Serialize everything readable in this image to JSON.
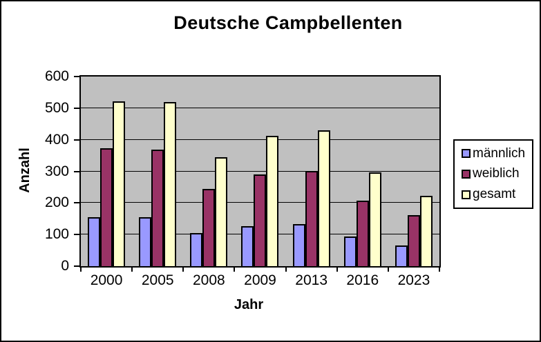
{
  "chart_data": {
    "type": "bar",
    "title": "Deutsche Campbellenten",
    "xlabel": "Jahr",
    "ylabel": "Anzahl",
    "categories": [
      "2000",
      "2005",
      "2008",
      "2009",
      "2013",
      "2016",
      "2023"
    ],
    "series": [
      {
        "name": "männlich",
        "color": "#9999ff",
        "values": [
          150,
          150,
          101,
          123,
          128,
          89,
          62
        ]
      },
      {
        "name": "weiblich",
        "color": "#993366",
        "values": [
          368,
          364,
          240,
          286,
          297,
          203,
          156
        ]
      },
      {
        "name": "gesamt",
        "color": "#ffffcc",
        "values": [
          518,
          514,
          341,
          409,
          425,
          292,
          218
        ]
      }
    ],
    "ylim": [
      0,
      600
    ],
    "yticks": [
      0,
      100,
      200,
      300,
      400,
      500,
      600
    ],
    "grid": true,
    "legend_position": "right",
    "plot_bg": "#c0c0c0",
    "axis_color": "#000000"
  }
}
